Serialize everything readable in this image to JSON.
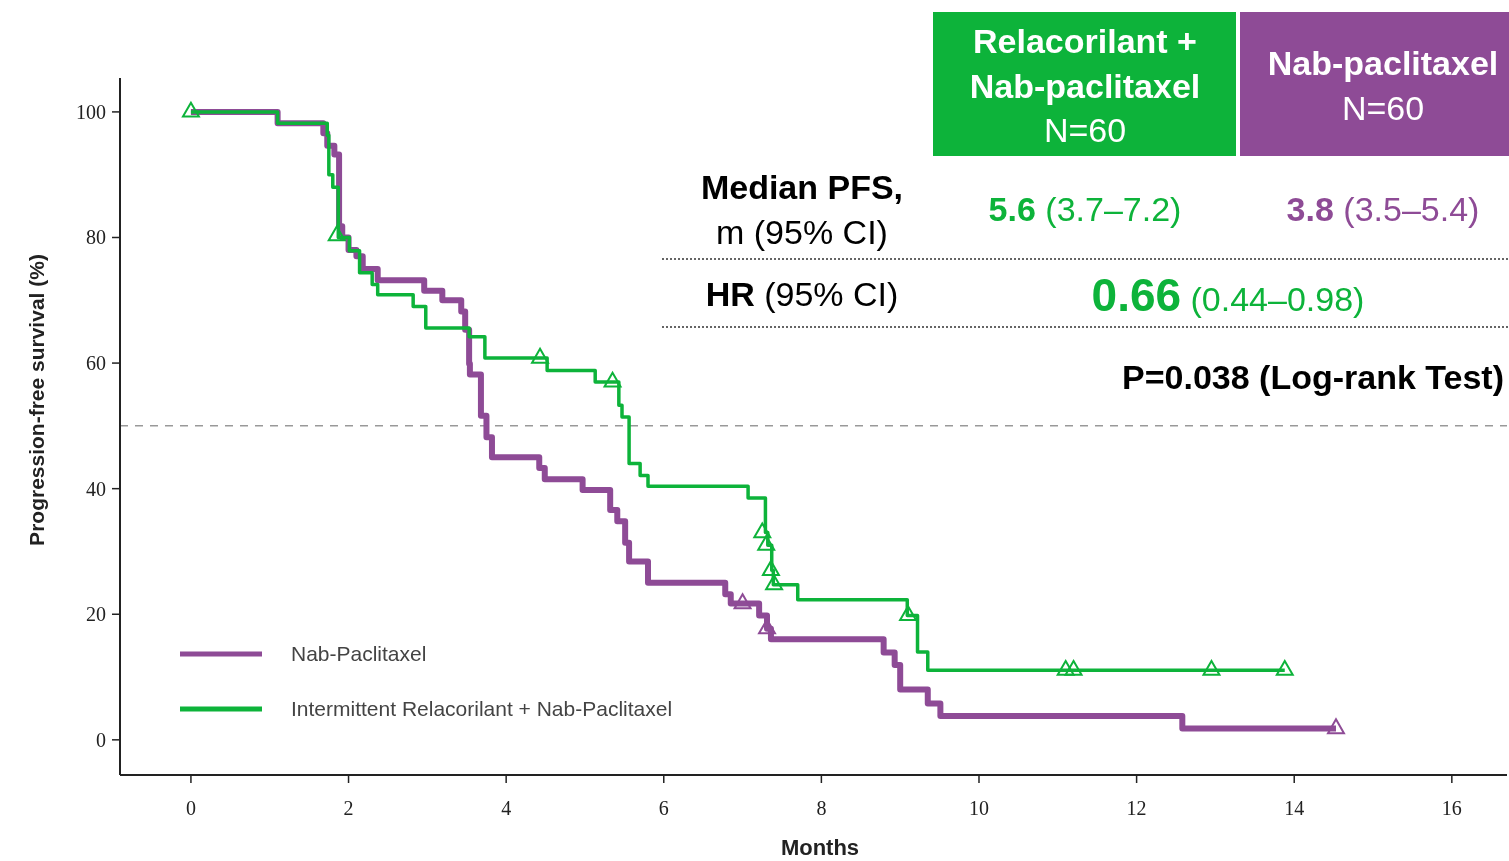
{
  "chart_data": {
    "type": "step",
    "xlabel": "Months",
    "ylabel": "Progression-free survival (%)",
    "xlim": [
      -0.9,
      16.7
    ],
    "ylim": [
      -5.6,
      105.4
    ],
    "xticks": [
      0,
      2,
      4,
      6,
      8,
      10,
      12,
      14,
      16
    ],
    "yticks": [
      0,
      20,
      40,
      60,
      80,
      100
    ],
    "legend": "bottom left",
    "ref_lines": [
      {
        "axis": "y",
        "value": 50,
        "color": "#999999",
        "line_style": "dashed"
      }
    ],
    "series": [
      {
        "name": "Nab-Paclitaxel",
        "color": "#8e4b96",
        "x": [
          0,
          1.1,
          1.68,
          1.73,
          1.82,
          1.88,
          1.92,
          2.0,
          2.1,
          2.18,
          2.37,
          2.96,
          3.19,
          3.43,
          3.48,
          3.53,
          3.54,
          3.68,
          3.75,
          3.82,
          4.42,
          4.49,
          4.97,
          5.32,
          5.41,
          5.51,
          5.56,
          5.8,
          6.78,
          6.85,
          7.21,
          7.31,
          7.36,
          8.79,
          8.93,
          9.0,
          9.35,
          9.51,
          12.58,
          14.53
        ],
        "values": [
          100,
          98.2,
          96.6,
          94.6,
          93.2,
          81.8,
          80,
          78,
          77,
          75,
          73.2,
          71.5,
          70,
          68.2,
          65.3,
          59.9,
          58.2,
          51.6,
          48.2,
          45,
          43.3,
          41.5,
          39.8,
          36.6,
          34.8,
          31.4,
          28.4,
          25,
          23.2,
          21.7,
          19.8,
          17.7,
          16,
          13.9,
          11.9,
          8,
          5.8,
          3.8,
          1.8,
          1.8
        ]
      },
      {
        "name": "Intermittent Relacorilant + Nab-Paclitaxel",
        "color": "#0db33a",
        "x": [
          0,
          1.1,
          1.73,
          1.75,
          1.8,
          1.87,
          2.01,
          2.14,
          2.3,
          2.37,
          2.82,
          2.98,
          3.53,
          3.73,
          4.52,
          5.13,
          5.43,
          5.47,
          5.56,
          5.7,
          5.8,
          7.07,
          7.29,
          7.32,
          7.37,
          7.39,
          7.7,
          9.09,
          9.22,
          9.35,
          13.88
        ],
        "values": [
          100,
          98.2,
          96.3,
          90,
          88,
          80,
          77.9,
          74.4,
          72.5,
          70.9,
          69,
          65.6,
          64.2,
          60.8,
          58.8,
          57,
          53.3,
          51.4,
          44,
          42.1,
          40.4,
          38.5,
          33,
          31,
          27,
          24.7,
          22.3,
          19.8,
          14,
          11.1,
          11.1
        ]
      },
      {
        "type": "scatter",
        "marker": "triangle",
        "color": "#8e4b96",
        "x": [
          7.0,
          7.31,
          14.53
        ],
        "values": [
          21.7,
          17.7,
          1.8
        ]
      },
      {
        "type": "scatter",
        "marker": "triangle",
        "color": "#0db33a",
        "x": [
          0,
          1.85,
          4.43,
          5.35,
          7.25,
          7.3,
          7.36,
          7.4,
          9.1,
          11.1,
          11.2,
          12.95,
          13.88
        ],
        "values": [
          100,
          80.3,
          60.8,
          57,
          33,
          31,
          27,
          24.7,
          19.8,
          11.1,
          11.1,
          11.1,
          11.1
        ]
      }
    ],
    "annotations": [
      "Relacorilant +",
      "Nab-paclitaxel",
      "N=60",
      "Nab-paclitaxel",
      "N=60",
      "Median PFS,",
      "m (95% CI)",
      "5.6 (3.7–7.2)",
      "3.8 (3.5–5.4)",
      "HR (95% CI)",
      "0.66 (0.44–0.98)",
      "P=0.038 (Log-rank Test)"
    ]
  }
}
